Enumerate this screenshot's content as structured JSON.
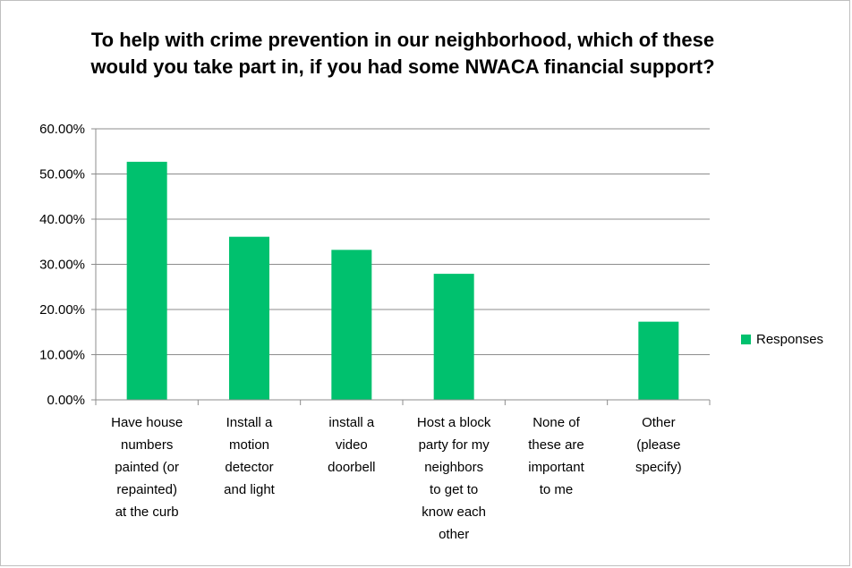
{
  "chart_data": {
    "type": "bar",
    "title": "To help with crime prevention in our neighborhood, which of these would you take part in, if you had some NWACA financial support?",
    "categories": [
      [
        "Have house",
        "numbers",
        "painted (or",
        "repainted)",
        "at the curb"
      ],
      [
        "Install a",
        "motion",
        "detector",
        "and light"
      ],
      [
        "install a",
        "video",
        "doorbell"
      ],
      [
        "Host a block",
        "party for my",
        "neighbors",
        "to get to",
        "know each",
        "other"
      ],
      [
        "None of",
        "these are",
        "important",
        "to me"
      ],
      [
        "Other",
        "(please",
        "specify)"
      ]
    ],
    "series": [
      {
        "name": "Responses",
        "values": [
          52.7,
          36.1,
          33.2,
          27.9,
          0.0,
          17.3
        ],
        "color": "#00c16e"
      }
    ],
    "ylim": [
      0,
      60
    ],
    "yticks": [
      "0.00%",
      "10.00%",
      "20.00%",
      "30.00%",
      "40.00%",
      "50.00%",
      "60.00%"
    ],
    "grid": true,
    "legend_position": "right"
  }
}
